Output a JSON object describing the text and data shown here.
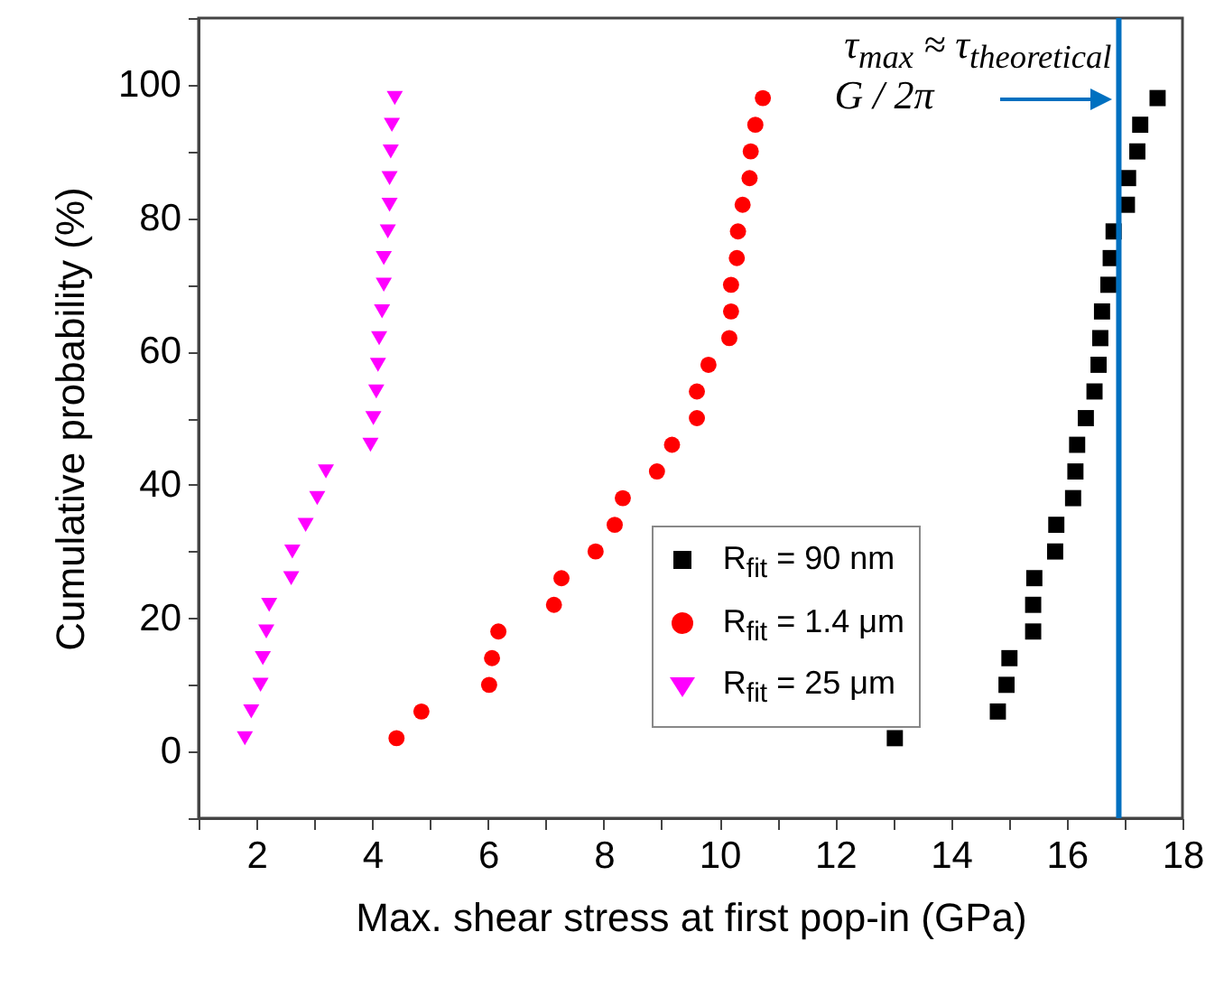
{
  "chart_data": {
    "type": "scatter",
    "xlabel": "Max. shear stress at first pop-in (GPa)",
    "ylabel": "Cumulative probability (%)",
    "xlim": [
      1,
      18
    ],
    "xticks": [
      {
        "value": 1,
        "label": null
      },
      2,
      {
        "value": 3,
        "label": null
      },
      4,
      {
        "value": 5,
        "label": null
      },
      6,
      {
        "value": 7,
        "label": null
      },
      8,
      {
        "value": 9,
        "label": null
      },
      10,
      {
        "value": 11,
        "label": null
      },
      12,
      {
        "value": 13,
        "label": null
      },
      14,
      {
        "value": 15,
        "label": null
      },
      16,
      {
        "value": 17,
        "label": null
      },
      18
    ],
    "ylim": [
      -10,
      110
    ],
    "yticks": [
      {
        "value": -10,
        "label": null
      },
      0,
      {
        "value": 10,
        "label": null
      },
      20,
      {
        "value": 30,
        "label": null
      },
      40,
      {
        "value": 50,
        "label": null
      },
      60,
      {
        "value": 70,
        "label": null
      },
      80,
      {
        "value": 90,
        "label": null
      },
      100,
      {
        "value": 110,
        "label": null
      }
    ],
    "legend": "bottom right",
    "series": [
      {
        "name": "R$_{fit}$ = 90 nm",
        "color": "#000000",
        "marker": "square",
        "x": [
          13.03,
          14.81,
          14.96,
          15.01,
          15.42,
          15.42,
          15.44,
          15.8,
          15.82,
          16.11,
          16.15,
          16.18,
          16.33,
          16.48,
          16.55,
          16.58,
          16.61,
          16.72,
          16.76,
          16.81,
          17.04,
          17.06,
          17.22,
          17.27,
          17.57
        ],
        "values": [
          2,
          6,
          10,
          14,
          18,
          22,
          26,
          30,
          34,
          38,
          42,
          46,
          50,
          54,
          58,
          62,
          66,
          70,
          74,
          78,
          82,
          86,
          90,
          94,
          98
        ]
      },
      {
        "name": "R$_{fit}$ = 1.4 μm",
        "color": "#ff0000",
        "marker": "circle",
        "x": [
          4.42,
          4.85,
          6.02,
          6.07,
          6.18,
          7.14,
          7.27,
          7.86,
          8.19,
          8.33,
          8.92,
          9.18,
          9.61,
          9.61,
          9.81,
          10.17,
          10.2,
          10.2,
          10.3,
          10.32,
          10.4,
          10.52,
          10.54,
          10.62,
          10.75
        ],
        "values": [
          2,
          6,
          10,
          14,
          18,
          22,
          26,
          30,
          34,
          38,
          42,
          46,
          50,
          54,
          58,
          62,
          66,
          70,
          74,
          78,
          82,
          86,
          90,
          94,
          98
        ]
      },
      {
        "name": "R$_{fit}$ = 25 μm",
        "color": "#ff00ff",
        "marker": "triangle",
        "x": [
          1.8,
          1.91,
          2.07,
          2.11,
          2.17,
          2.22,
          2.6,
          2.62,
          2.85,
          3.05,
          3.2,
          3.97,
          4.02,
          4.07,
          4.1,
          4.12,
          4.17,
          4.2,
          4.2,
          4.27,
          4.3,
          4.3,
          4.32,
          4.34,
          4.39
        ],
        "values": [
          2,
          6,
          10,
          14,
          18,
          22,
          26,
          30,
          34,
          38,
          42,
          46,
          50,
          54,
          58,
          62,
          66,
          70,
          74,
          78,
          82,
          86,
          90,
          94,
          98
        ]
      }
    ],
    "ref_lines": [
      {
        "axis": "x",
        "value": 16.9,
        "color": "#0070c0"
      }
    ],
    "annotations": [
      "τ$_{max}$ ≈ τ$_{theoretical}$",
      "G / 2π"
    ]
  }
}
